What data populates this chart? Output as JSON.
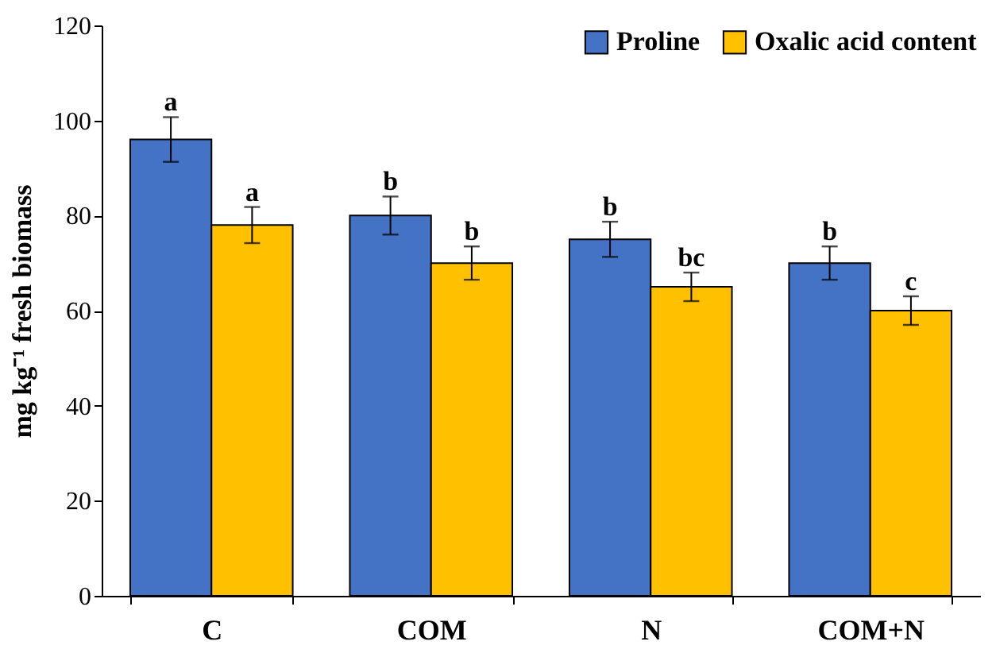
{
  "chart_data": {
    "type": "bar",
    "ylabel": "mg kg⁻¹ fresh biomass",
    "categories": [
      "C",
      "COM",
      "N",
      "COM+N"
    ],
    "series": [
      {
        "name": "Proline",
        "color": "#4472c4",
        "values": [
          96,
          80,
          75,
          70
        ],
        "errors": [
          4.7,
          4,
          3.7,
          3.5
        ],
        "value_labels": [
          "a",
          "b",
          "b",
          "b"
        ]
      },
      {
        "name": "Oxalic acid content",
        "color": "#ffc000",
        "values": [
          78,
          70,
          65,
          60
        ],
        "errors": [
          3.8,
          3.5,
          3,
          3
        ],
        "value_labels": [
          "a",
          "b",
          "bc",
          "c"
        ]
      }
    ],
    "ylim": [
      0,
      120
    ],
    "yticks": [
      0,
      20,
      40,
      60,
      80,
      100,
      120
    ],
    "grid": false,
    "legend": "top right"
  }
}
